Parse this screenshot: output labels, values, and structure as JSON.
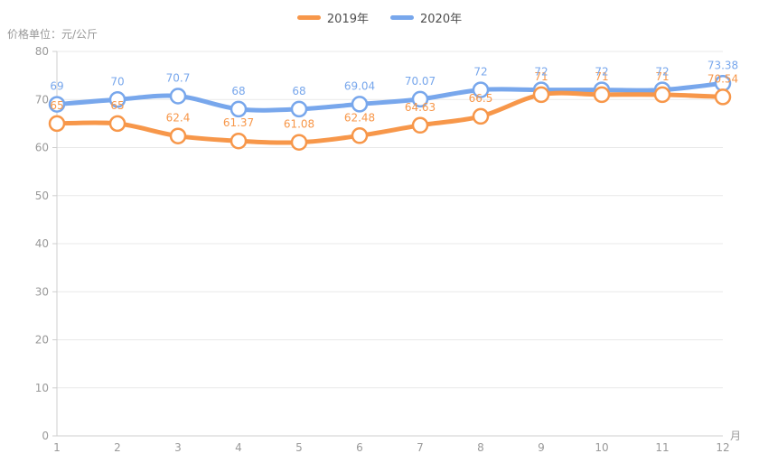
{
  "legend": {
    "items": [
      {
        "label": "2019年"
      },
      {
        "label": "2020年"
      }
    ]
  },
  "colors": {
    "grid_line": "#e9e9e9",
    "axis_line": "#cfcfcf",
    "tick_label": "#999999",
    "legend_text": "#4d4d4d",
    "series_2019": "#f7974a",
    "series_2020": "#78a7ec",
    "point_fill": "#ffffff"
  },
  "chart_data": {
    "type": "line",
    "title": "",
    "unit_label": "价格单位：元/公斤",
    "xlabel": "月",
    "ylabel": "",
    "categories": [
      "1",
      "2",
      "3",
      "4",
      "5",
      "6",
      "7",
      "8",
      "9",
      "10",
      "11",
      "12"
    ],
    "series": [
      {
        "name": "2019年",
        "color": "#f7974a",
        "values": [
          65,
          65,
          62.4,
          61.37,
          61.08,
          62.48,
          64.63,
          66.5,
          71,
          71,
          71,
          70.54
        ]
      },
      {
        "name": "2020年",
        "color": "#78a7ec",
        "values": [
          69,
          70,
          70.7,
          68,
          68,
          69.04,
          70.07,
          72,
          72,
          72,
          72,
          73.38
        ]
      }
    ],
    "ylim": [
      0,
      80
    ],
    "y_ticks": [
      0,
      10,
      20,
      30,
      40,
      50,
      60,
      70,
      80
    ],
    "grid": "horizontal-only",
    "legend_position": "top-center",
    "smooth": true,
    "symbol": "hollow-circle",
    "data_labels": "above-points"
  }
}
